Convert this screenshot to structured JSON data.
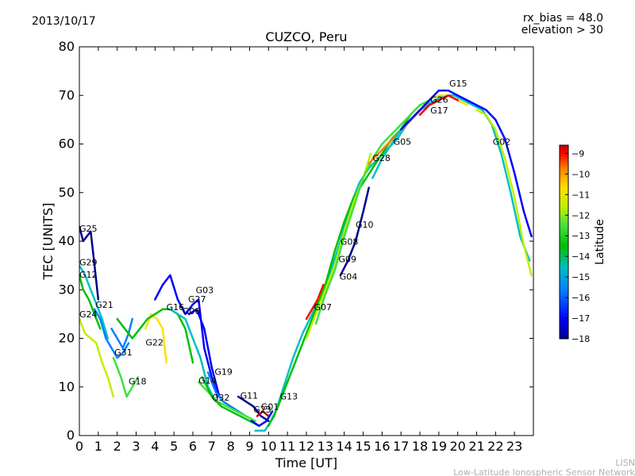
{
  "header": {
    "date": "2013/10/17",
    "rx_bias": "rx_bias = 48.0",
    "elevation": "elevation > 30"
  },
  "footer": {
    "org": "LISN",
    "org_full": "Low-Latitude Ionospheric Sensor Network"
  },
  "colors": {
    "scale": [
      "#00008f",
      "#0000ff",
      "#0080ff",
      "#00c0c0",
      "#00c000",
      "#40e040",
      "#c0f000",
      "#ffe000",
      "#ff8000",
      "#ff0000",
      "#c00000"
    ]
  },
  "chart_data": {
    "type": "line",
    "title": "CUZCO, Peru",
    "xlabel": "Time [UT]",
    "ylabel": "TEC [UNITS]",
    "xlim": [
      0,
      24
    ],
    "ylim": [
      0,
      80
    ],
    "xticks": [
      0,
      1,
      2,
      3,
      4,
      5,
      6,
      7,
      8,
      9,
      10,
      11,
      12,
      13,
      14,
      15,
      16,
      17,
      18,
      19,
      20,
      21,
      22,
      23
    ],
    "yticks": [
      0,
      10,
      20,
      30,
      40,
      50,
      60,
      70,
      80
    ],
    "colorbar": {
      "label": "Latitude",
      "min": -18,
      "max": -8.6,
      "ticks": [
        -9,
        -10,
        -11,
        -12,
        -13,
        -14,
        -15,
        -16,
        -17,
        -18
      ]
    },
    "series": [
      {
        "name": "G25",
        "lat": -17.8,
        "x": [
          0,
          0.2,
          0.4,
          0.6,
          0.8,
          1.0
        ],
        "y": [
          43,
          40,
          41,
          42,
          35,
          28
        ]
      },
      {
        "name": "G29",
        "lat": -15.0,
        "x": [
          0,
          0.3,
          0.6,
          0.9,
          1.2,
          1.5
        ],
        "y": [
          35,
          33,
          30,
          27,
          24,
          20
        ]
      },
      {
        "name": "G12",
        "lat": -14.5,
        "x": [
          0,
          0.2,
          0.5,
          0.8,
          1.1
        ],
        "y": [
          33,
          30,
          28,
          25,
          22
        ]
      },
      {
        "name": "G21",
        "lat": -16.5,
        "x": [
          0.8,
          1.1,
          1.4,
          1.7,
          2.0,
          2.3,
          2.6
        ],
        "y": [
          26,
          24,
          20,
          18,
          16,
          17,
          19
        ]
      },
      {
        "name": "G24",
        "lat": -12.5,
        "x": [
          0,
          0.3,
          0.6,
          0.9,
          1.2,
          1.5,
          1.8
        ],
        "y": [
          24,
          21,
          20,
          19,
          15,
          12,
          8
        ]
      },
      {
        "name": "G31",
        "lat": -16.0,
        "x": [
          1.7,
          2.0,
          2.3,
          2.6,
          2.8
        ],
        "y": [
          22,
          20,
          18,
          21,
          24
        ]
      },
      {
        "name": "G22",
        "lat": -11.5,
        "x": [
          3.5,
          3.8,
          4.1,
          4.4,
          4.6
        ],
        "y": [
          22,
          25,
          24,
          22,
          15
        ]
      },
      {
        "name": "G18",
        "lat": -13.5,
        "x": [
          1.8,
          2.2,
          2.5,
          2.8,
          3.1
        ],
        "y": [
          16,
          12,
          8,
          10,
          12
        ]
      },
      {
        "name": "G16",
        "lat": -14.0,
        "x": [
          2.0,
          2.4,
          2.8,
          3.2,
          3.6,
          4.0,
          4.4,
          4.8,
          5.2,
          5.6,
          6.0
        ],
        "y": [
          24,
          22,
          20,
          22,
          24,
          25,
          26,
          26,
          25,
          22,
          15
        ]
      },
      {
        "name": "G06",
        "lat": -15.5,
        "x": [
          4.8,
          5.2,
          5.6,
          6.0,
          6.4,
          6.8,
          7.2
        ],
        "y": [
          26,
          25,
          24,
          20,
          16,
          10,
          7
        ]
      },
      {
        "name": "G27",
        "lat": -17.0,
        "x": [
          5.8,
          6.2,
          6.6,
          7.0,
          7.4
        ],
        "y": [
          25,
          26,
          22,
          14,
          8
        ]
      },
      {
        "name": "G03",
        "lat": -17.5,
        "x": [
          4.0,
          4.4,
          4.8,
          5.2,
          5.6,
          6.0,
          6.3,
          6.6,
          7.0,
          7.3
        ],
        "y": [
          28,
          31,
          33,
          28,
          25,
          27,
          28,
          18,
          12,
          8
        ]
      },
      {
        "name": "G19",
        "lat": -16.5,
        "x": [
          6.8,
          7.2,
          7.6,
          8.0,
          8.4,
          8.8
        ],
        "y": [
          13,
          9,
          7,
          6,
          5,
          4
        ]
      },
      {
        "name": "G14",
        "lat": -13.0,
        "x": [
          6.3,
          6.8,
          7.3,
          7.8,
          8.3,
          8.8,
          9.3
        ],
        "y": [
          11,
          9,
          7,
          6,
          5,
          4,
          3
        ]
      },
      {
        "name": "G32",
        "lat": -14.5,
        "x": [
          6.5,
          7.0,
          7.5,
          8.0,
          8.5,
          9.0,
          9.5
        ],
        "y": [
          12,
          8,
          6,
          5,
          4,
          3,
          2
        ]
      },
      {
        "name": "G11",
        "lat": -18.0,
        "x": [
          8.4,
          8.8,
          9.2,
          9.6,
          10.0
        ],
        "y": [
          8,
          7,
          6,
          4,
          3
        ]
      },
      {
        "name": "G01",
        "lat": -9.0,
        "x": [
          9.4,
          9.7,
          10.0
        ],
        "y": [
          4,
          5,
          4
        ]
      },
      {
        "name": "G23",
        "lat": -17.0,
        "x": [
          9.1,
          9.5,
          9.9,
          10.2
        ],
        "y": [
          3,
          2,
          3,
          5
        ]
      },
      {
        "name": "G13",
        "lat": -15.0,
        "x": [
          9.3,
          9.8,
          10.3,
          10.8,
          11.3,
          11.8,
          12.3,
          12.8,
          13.3,
          13.8,
          14.3,
          14.8,
          15.3,
          15.8,
          16.3,
          16.8,
          17.3,
          17.8,
          18.3,
          18.8,
          19.3,
          19.8,
          20.3,
          20.8,
          21.3,
          21.8,
          22.3,
          22.8,
          23.3,
          23.8
        ],
        "y": [
          1,
          1,
          4,
          10,
          16,
          21,
          25,
          29,
          34,
          40,
          47,
          52,
          55,
          57,
          59,
          61,
          64,
          66,
          68,
          69,
          70,
          70,
          69,
          68,
          67,
          64,
          58,
          50,
          41,
          36
        ]
      },
      {
        "name": "G07",
        "lat": -10.0,
        "x": [
          12.0,
          12.3,
          12.6,
          12.9
        ],
        "y": [
          24,
          26,
          28,
          31
        ]
      },
      {
        "name": "G04",
        "lat": -14.0,
        "x": [
          10.0,
          10.5,
          11.0,
          11.5,
          12.0,
          12.5,
          13.0,
          13.5,
          14.0,
          14.5,
          15.0,
          15.5,
          16.0,
          16.5,
          17.0,
          17.5,
          18.0
        ],
        "y": [
          2,
          6,
          11,
          16,
          21,
          26,
          31,
          38,
          44,
          49,
          52,
          55,
          58,
          61,
          63,
          66,
          68
        ]
      },
      {
        "name": "G09",
        "lat": -12.0,
        "x": [
          12.0,
          12.5,
          13.0,
          13.5,
          14.0,
          14.5,
          15.0,
          15.4
        ],
        "y": [
          20,
          25,
          30,
          35,
          42,
          48,
          53,
          58
        ]
      },
      {
        "name": "G08",
        "lat": -13.5,
        "x": [
          12.5,
          13.0,
          13.5,
          14.0,
          14.5,
          15.0,
          15.5,
          16.0,
          16.5,
          17.0,
          17.5,
          18.0,
          18.5
        ],
        "y": [
          23,
          29,
          34,
          41,
          47,
          53,
          57,
          60,
          62,
          64,
          66,
          68,
          69
        ]
      },
      {
        "name": "G10",
        "lat": -18.0,
        "x": [
          13.8,
          14.2,
          14.6,
          15.0,
          15.3
        ],
        "y": [
          33,
          36,
          40,
          46,
          51
        ]
      },
      {
        "name": "G28",
        "lat": -10.5,
        "x": [
          15.3,
          15.8,
          16.3,
          16.8,
          17.3,
          17.8,
          18.3
        ],
        "y": [
          56,
          58,
          60,
          62,
          64,
          66,
          68
        ]
      },
      {
        "name": "G05",
        "lat": -15.5,
        "x": [
          15.5,
          16.0,
          16.5,
          17.0,
          17.5,
          18.0,
          18.5,
          19.0,
          19.5,
          20.0
        ],
        "y": [
          53,
          57,
          60,
          63,
          65,
          67,
          68,
          69,
          70,
          69
        ]
      },
      {
        "name": "G17",
        "lat": -11.0,
        "x": [
          17.5,
          18.0,
          18.5,
          19.0,
          19.5,
          20.0,
          20.5
        ],
        "y": [
          65,
          67,
          69,
          70,
          70,
          69,
          68
        ]
      },
      {
        "name": "G26",
        "lat": -9.5,
        "x": [
          18.0,
          18.5,
          19.0,
          19.5,
          20.0
        ],
        "y": [
          66,
          68,
          69,
          70,
          69
        ]
      },
      {
        "name": "G15",
        "lat": -17.5,
        "x": [
          17.0,
          17.5,
          18.0,
          18.5,
          19.0,
          19.5,
          20.0,
          20.5,
          21.0,
          21.5,
          22.0,
          22.5,
          23.0,
          23.5,
          23.9
        ],
        "y": [
          63,
          65,
          67,
          69,
          71,
          71,
          70,
          69,
          68,
          67,
          65,
          61,
          54,
          46,
          41
        ]
      },
      {
        "name": "G02",
        "lat": -12.5,
        "x": [
          21.0,
          21.5,
          22.0,
          22.5,
          23.0,
          23.5,
          23.9
        ],
        "y": [
          67,
          66,
          63,
          57,
          49,
          39,
          33
        ]
      }
    ],
    "curve_labels": [
      {
        "name": "G25",
        "x": 0.0,
        "y": 42
      },
      {
        "name": "G29",
        "x": 0.0,
        "y": 35
      },
      {
        "name": "G12",
        "x": 0.0,
        "y": 32.5
      },
      {
        "name": "G21",
        "x": 0.85,
        "y": 26.3
      },
      {
        "name": "G24",
        "x": 0.0,
        "y": 24.3
      },
      {
        "name": "G31",
        "x": 1.85,
        "y": 16.5
      },
      {
        "name": "G22",
        "x": 3.5,
        "y": 18.5
      },
      {
        "name": "G18",
        "x": 2.6,
        "y": 10.5
      },
      {
        "name": "G16",
        "x": 4.6,
        "y": 25.8
      },
      {
        "name": "G06",
        "x": 5.45,
        "y": 25
      },
      {
        "name": "G27",
        "x": 5.75,
        "y": 27.4
      },
      {
        "name": "G03",
        "x": 6.15,
        "y": 29.3
      },
      {
        "name": "G19",
        "x": 7.15,
        "y": 12.5
      },
      {
        "name": "G14",
        "x": 6.3,
        "y": 10.7
      },
      {
        "name": "G32",
        "x": 7.0,
        "y": 7.2
      },
      {
        "name": "G11",
        "x": 8.5,
        "y": 7.6
      },
      {
        "name": "G01",
        "x": 9.6,
        "y": 5.3
      },
      {
        "name": "G23",
        "x": 9.2,
        "y": 4.7
      },
      {
        "name": "G13",
        "x": 10.6,
        "y": 7.4
      },
      {
        "name": "G07",
        "x": 12.4,
        "y": 25.8
      },
      {
        "name": "G04",
        "x": 13.75,
        "y": 32.1
      },
      {
        "name": "G09",
        "x": 13.7,
        "y": 35.7
      },
      {
        "name": "G08",
        "x": 13.8,
        "y": 39.3
      },
      {
        "name": "G10",
        "x": 14.6,
        "y": 42.8
      },
      {
        "name": "G28",
        "x": 15.5,
        "y": 56.5
      },
      {
        "name": "G05",
        "x": 16.6,
        "y": 59.8
      },
      {
        "name": "G17",
        "x": 18.55,
        "y": 66.3
      },
      {
        "name": "G26",
        "x": 18.55,
        "y": 68.5
      },
      {
        "name": "G15",
        "x": 19.55,
        "y": 71.8
      },
      {
        "name": "G02",
        "x": 21.85,
        "y": 59.8
      }
    ]
  }
}
